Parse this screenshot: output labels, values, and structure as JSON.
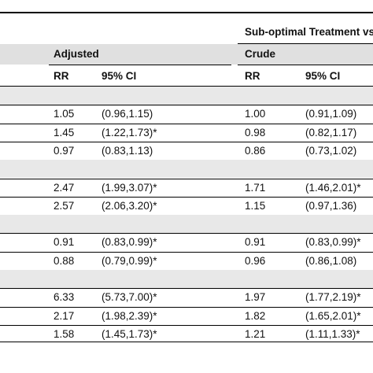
{
  "header": {
    "group_title": "Sub-optimal Treatment vs",
    "col_adjusted": "Adjusted",
    "col_crude": "Crude",
    "rr": "RR",
    "ci": "95% CI"
  },
  "rows": [
    {
      "type": "band"
    },
    {
      "type": "data",
      "a_rr": "1.05",
      "a_ci": "(0.96,1.15)",
      "c_rr": "1.00",
      "c_ci": "(0.91,1.09)"
    },
    {
      "type": "data",
      "a_rr": "1.45",
      "a_ci": "(1.22,1.73)*",
      "c_rr": "0.98",
      "c_ci": "(0.82,1.17)"
    },
    {
      "type": "data",
      "a_rr": "0.97",
      "a_ci": "(0.83,1.13)",
      "c_rr": "0.86",
      "c_ci": "(0.73,1.02)"
    },
    {
      "type": "band"
    },
    {
      "type": "data",
      "a_rr": "2.47",
      "a_ci": "(1.99,3.07)*",
      "c_rr": "1.71",
      "c_ci": "(1.46,2.01)*"
    },
    {
      "type": "data",
      "a_rr": "2.57",
      "a_ci": "(2.06,3.20)*",
      "c_rr": "1.15",
      "c_ci": "(0.97,1.36)"
    },
    {
      "type": "band"
    },
    {
      "type": "data",
      "a_rr": "0.91",
      "a_ci": "(0.83,0.99)*",
      "c_rr": "0.91",
      "c_ci": "(0.83,0.99)*"
    },
    {
      "type": "data",
      "a_rr": "0.88",
      "a_ci": "(0.79,0.99)*",
      "c_rr": "0.96",
      "c_ci": "(0.86,1.08)"
    },
    {
      "type": "band"
    },
    {
      "type": "data",
      "a_rr": "6.33",
      "a_ci": "(5.73,7.00)*",
      "c_rr": "1.97",
      "c_ci": "(1.77,2.19)*"
    },
    {
      "type": "data",
      "a_rr": "2.17",
      "a_ci": "(1.98,2.39)*",
      "c_rr": "1.82",
      "c_ci": "(1.65,2.01)*"
    },
    {
      "type": "data",
      "a_rr": "1.58",
      "a_ci": "(1.45,1.73)*",
      "c_rr": "1.21",
      "c_ci": "(1.11,1.33)*"
    }
  ]
}
